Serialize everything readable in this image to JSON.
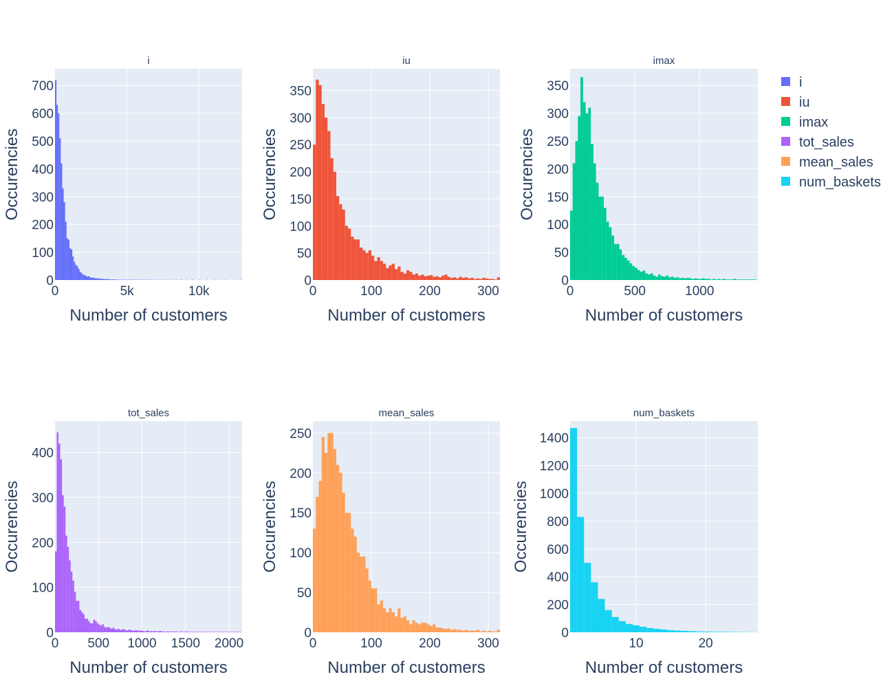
{
  "chart_data": [
    {
      "type": "bar",
      "title": "i",
      "color": "#636efa",
      "xlabel": "Number of customers",
      "ylabel": "Occurencies",
      "xlim": [
        0,
        13000
      ],
      "ylim": [
        0,
        760
      ],
      "x_ticks": [
        0,
        5000,
        10000
      ],
      "x_tick_labels": [
        "0",
        "5k",
        "10k"
      ],
      "y_ticks": [
        0,
        100,
        200,
        300,
        400,
        500,
        600,
        700
      ],
      "y_tick_labels": [
        "0",
        "100",
        "200",
        "300",
        "400",
        "500",
        "600",
        "700"
      ],
      "bin_start": 0,
      "bin_width": 100,
      "values": [
        720,
        630,
        600,
        510,
        420,
        330,
        280,
        210,
        150,
        145,
        115,
        110,
        85,
        65,
        55,
        50,
        40,
        30,
        25,
        20,
        18,
        15,
        12,
        14,
        10,
        8,
        9,
        7,
        6,
        6,
        5,
        5,
        4,
        4,
        3,
        4,
        3,
        3,
        2,
        2,
        2,
        2,
        2,
        1,
        1,
        1,
        1,
        1,
        1,
        1,
        1,
        1,
        1,
        1,
        1,
        1,
        1,
        1,
        1,
        1,
        0,
        1,
        1,
        0,
        1,
        1,
        0,
        1,
        0,
        1,
        0,
        1,
        0,
        1,
        0,
        0,
        1,
        0,
        1,
        0,
        0,
        1,
        0,
        0,
        1,
        0,
        0,
        1,
        0,
        0,
        0,
        1,
        0,
        0,
        0,
        1,
        0,
        0,
        0,
        0,
        1,
        0,
        0,
        0,
        0,
        1,
        0,
        0,
        0,
        0,
        0,
        1,
        0,
        0,
        0,
        0,
        0,
        0,
        1,
        0,
        0,
        0,
        0,
        0,
        0,
        0,
        0,
        0,
        0,
        1
      ]
    },
    {
      "type": "bar",
      "title": "iu",
      "color": "#ef553b",
      "xlabel": "Number of customers",
      "ylabel": "Occurencies",
      "xlim": [
        0,
        320
      ],
      "ylim": [
        0,
        390
      ],
      "x_ticks": [
        0,
        100,
        200,
        300
      ],
      "x_tick_labels": [
        "0",
        "100",
        "200",
        "300"
      ],
      "y_ticks": [
        0,
        50,
        100,
        150,
        200,
        250,
        300,
        350
      ],
      "y_tick_labels": [
        "0",
        "50",
        "100",
        "150",
        "200",
        "250",
        "300",
        "350"
      ],
      "bin_start": 0,
      "bin_width": 5,
      "values": [
        250,
        370,
        360,
        325,
        300,
        275,
        225,
        200,
        155,
        140,
        130,
        100,
        95,
        80,
        75,
        75,
        60,
        55,
        50,
        55,
        45,
        35,
        42,
        35,
        30,
        22,
        27,
        30,
        20,
        25,
        15,
        12,
        18,
        15,
        10,
        12,
        8,
        10,
        7,
        8,
        9,
        6,
        7,
        5,
        8,
        10,
        6,
        4,
        5,
        3,
        6,
        4,
        5,
        3,
        4,
        2,
        3,
        2,
        4,
        3,
        2,
        2,
        1,
        5
      ]
    },
    {
      "type": "bar",
      "title": "imax",
      "color": "#00cc96",
      "xlabel": "Number of customers",
      "ylabel": "Occurencies",
      "xlim": [
        0,
        1450
      ],
      "ylim": [
        0,
        380
      ],
      "x_ticks": [
        0,
        500,
        1000
      ],
      "x_tick_labels": [
        "0",
        "500",
        "1000"
      ],
      "y_ticks": [
        0,
        50,
        100,
        150,
        200,
        250,
        300,
        350
      ],
      "y_tick_labels": [
        "0",
        "50",
        "100",
        "150",
        "200",
        "250",
        "300",
        "350"
      ],
      "bin_start": 0,
      "bin_width": 20,
      "values": [
        125,
        210,
        250,
        295,
        365,
        320,
        300,
        310,
        245,
        210,
        175,
        150,
        150,
        130,
        105,
        95,
        80,
        65,
        65,
        55,
        45,
        40,
        35,
        30,
        25,
        22,
        18,
        15,
        17,
        12,
        10,
        12,
        8,
        6,
        10,
        7,
        6,
        8,
        5,
        6,
        4,
        5,
        3,
        4,
        3,
        4,
        3,
        2,
        3,
        2,
        2,
        3,
        2,
        2,
        1,
        2,
        1,
        2,
        1,
        2,
        1,
        1,
        1,
        2,
        1,
        1,
        1,
        1,
        1,
        1,
        1,
        1
      ]
    },
    {
      "type": "bar",
      "title": "tot_sales",
      "color": "#ab63fa",
      "xlabel": "Number of customers",
      "ylabel": "Occurencies",
      "xlim": [
        0,
        2150
      ],
      "ylim": [
        0,
        470
      ],
      "x_ticks": [
        0,
        500,
        1000,
        1500,
        2000
      ],
      "x_tick_labels": [
        "0",
        "500",
        "1000",
        "1500",
        "2000"
      ],
      "y_ticks": [
        0,
        100,
        200,
        300,
        400
      ],
      "y_tick_labels": [
        "0",
        "100",
        "200",
        "300",
        "400"
      ],
      "bin_start": 0,
      "bin_width": 20,
      "values": [
        180,
        445,
        420,
        385,
        305,
        280,
        215,
        190,
        160,
        135,
        115,
        90,
        70,
        70,
        50,
        45,
        40,
        30,
        30,
        25,
        20,
        20,
        28,
        25,
        20,
        17,
        15,
        18,
        12,
        10,
        12,
        10,
        8,
        10,
        7,
        6,
        8,
        5,
        6,
        7,
        5,
        4,
        6,
        5,
        4,
        3,
        5,
        4,
        3,
        4,
        3,
        2,
        3,
        4,
        2,
        3,
        2,
        3,
        2,
        2,
        3,
        2,
        2,
        1,
        2,
        2,
        1,
        2,
        1,
        2,
        1,
        1,
        2,
        1,
        1,
        2,
        1,
        1,
        1,
        1,
        1,
        1,
        1,
        1,
        1,
        1,
        1,
        1,
        1,
        1,
        1,
        1,
        1,
        1,
        1,
        1,
        1,
        1,
        1,
        1,
        1,
        1,
        1,
        1,
        1,
        1,
        1
      ]
    },
    {
      "type": "bar",
      "title": "mean_sales",
      "color": "#ffa15a",
      "xlabel": "Number of customers",
      "ylabel": "Occurencies",
      "xlim": [
        0,
        320
      ],
      "ylim": [
        0,
        265
      ],
      "x_ticks": [
        0,
        100,
        200,
        300
      ],
      "x_tick_labels": [
        "0",
        "100",
        "200",
        "300"
      ],
      "y_ticks": [
        0,
        50,
        100,
        150,
        200,
        250
      ],
      "y_tick_labels": [
        "0",
        "50",
        "100",
        "150",
        "200",
        "250"
      ],
      "bin_start": 0,
      "bin_width": 5,
      "values": [
        130,
        170,
        190,
        245,
        225,
        250,
        250,
        230,
        210,
        200,
        175,
        150,
        150,
        130,
        120,
        100,
        95,
        95,
        80,
        65,
        55,
        55,
        35,
        40,
        30,
        25,
        30,
        25,
        20,
        30,
        18,
        20,
        15,
        10,
        15,
        12,
        10,
        12,
        12,
        10,
        8,
        10,
        6,
        6,
        5,
        4,
        5,
        3,
        4,
        3,
        3,
        2,
        3,
        2,
        2,
        2,
        3,
        1,
        2,
        1,
        2,
        1,
        1,
        3
      ]
    },
    {
      "type": "bar",
      "title": "num_baskets",
      "color": "#19d3f3",
      "xlabel": "Number of customers",
      "ylabel": "Occurencies",
      "xlim": [
        0.5,
        27.5
      ],
      "ylim": [
        0,
        1520
      ],
      "x_ticks": [
        10,
        20
      ],
      "x_tick_labels": [
        "10",
        "20"
      ],
      "y_ticks": [
        0,
        200,
        400,
        600,
        800,
        1000,
        1200,
        1400
      ],
      "y_tick_labels": [
        "0",
        "200",
        "400",
        "600",
        "800",
        "1000",
        "1200",
        "1400"
      ],
      "bin_start": 0.5,
      "bin_width": 1,
      "values": [
        1470,
        830,
        500,
        360,
        240,
        160,
        110,
        80,
        60,
        50,
        40,
        30,
        25,
        20,
        15,
        12,
        10,
        8,
        6,
        5,
        4,
        3,
        3,
        2,
        2,
        1,
        1
      ]
    }
  ],
  "legend": [
    {
      "name": "i",
      "color": "#636efa"
    },
    {
      "name": "iu",
      "color": "#ef553b"
    },
    {
      "name": "imax",
      "color": "#00cc96"
    },
    {
      "name": "tot_sales",
      "color": "#ab63fa"
    },
    {
      "name": "mean_sales",
      "color": "#ffa15a"
    },
    {
      "name": "num_baskets",
      "color": "#19d3f3"
    }
  ]
}
